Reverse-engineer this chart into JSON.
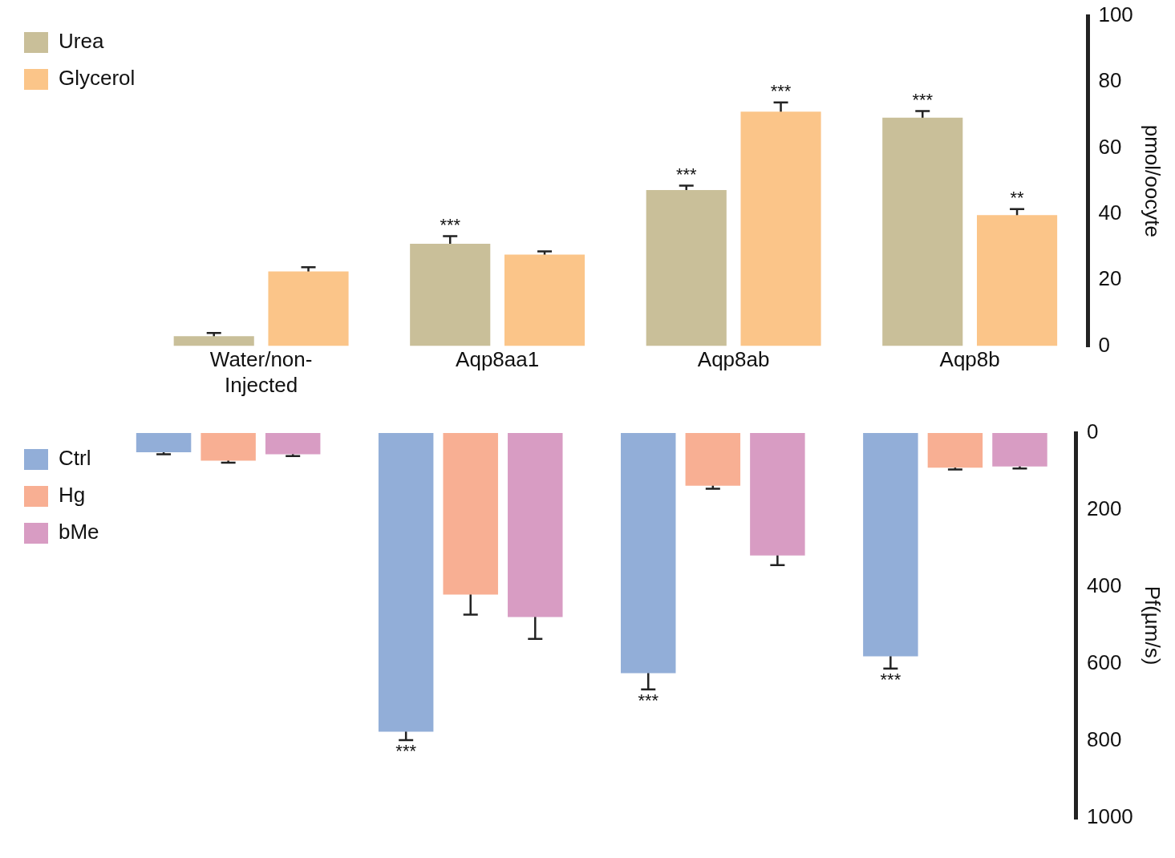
{
  "chart_data": [
    {
      "type": "bar",
      "ylabel": "pmol/oocyte",
      "categories": [
        "Water/non-Injected",
        "Aqp8aa1",
        "Aqp8ab",
        "Aqp8b"
      ],
      "series": [
        {
          "name": "Urea",
          "color": "#c9bf99",
          "values": [
            3,
            31,
            47.3,
            69.2
          ],
          "errors": [
            1,
            2.3,
            1.3,
            2
          ],
          "value_labels": [
            null,
            "***",
            "***",
            "***"
          ]
        },
        {
          "name": "Glycerol",
          "color": "#fbc589",
          "values": [
            22.6,
            27.7,
            71,
            39.7
          ],
          "errors": [
            1.3,
            1,
            2.8,
            1.8
          ],
          "value_labels": [
            null,
            null,
            "***",
            "**"
          ]
        }
      ],
      "ylim": [
        0,
        100
      ],
      "yticks": [
        0,
        20,
        40,
        60,
        80,
        100
      ],
      "legend": "left",
      "tick_labels": "xy"
    },
    {
      "type": "bar",
      "ylabel": "Pf(µm/s)",
      "categories": [
        null,
        null,
        null,
        null
      ],
      "series": [
        {
          "name": "Ctrl",
          "color": "#92aed8",
          "values": [
            50,
            776,
            624,
            580
          ],
          "errors": [
            5,
            22,
            42,
            32
          ],
          "value_labels": [
            null,
            "***",
            "***",
            "***"
          ]
        },
        {
          "name": "Hg",
          "color": "#f8af93",
          "values": [
            72,
            420,
            137,
            90
          ],
          "errors": [
            5,
            52,
            8,
            5
          ]
        },
        {
          "name": "bMe",
          "color": "#d89cc3",
          "values": [
            55,
            478,
            318,
            87
          ],
          "errors": [
            5,
            57,
            25,
            5
          ]
        }
      ],
      "ylim": [
        1000,
        0
      ],
      "yticks": [
        0,
        200,
        400,
        600,
        800,
        1000
      ],
      "legend": "left",
      "tick_labels": "y"
    }
  ]
}
